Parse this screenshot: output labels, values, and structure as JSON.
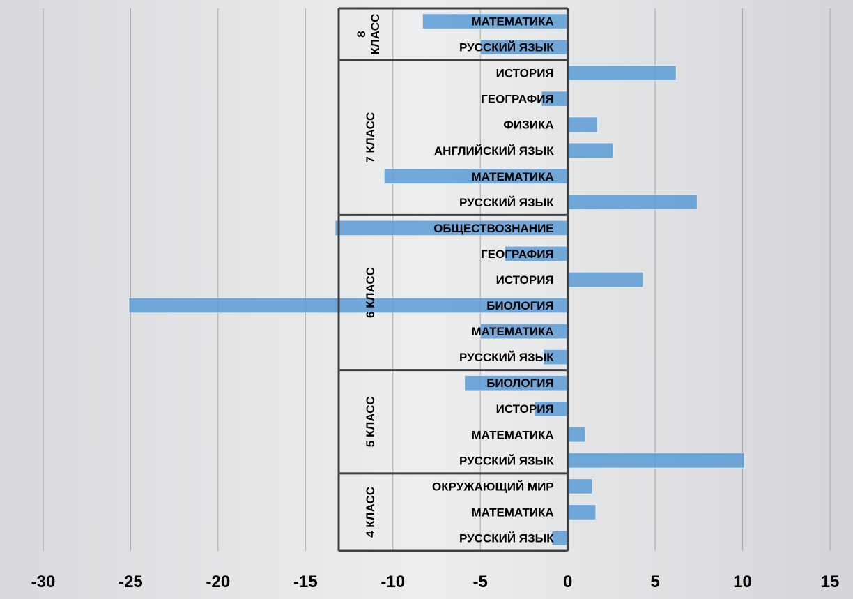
{
  "chart_data": {
    "type": "bar",
    "orientation": "horizontal",
    "title": "",
    "xlabel": "",
    "ylabel": "",
    "xlim": [
      -30,
      15
    ],
    "xticks": [
      -30,
      -25,
      -20,
      -15,
      -10,
      -5,
      0,
      5,
      10,
      15
    ],
    "grid": true,
    "legend": "none",
    "bar_color": "#5b9bd5",
    "groups": [
      {
        "name": "4 КЛАСС",
        "categories": [
          {
            "label": "РУССКИЙ ЯЗЫК",
            "value": -0.9
          },
          {
            "label": "МАТЕМАТИКА",
            "value": 1.6
          },
          {
            "label": "ОКРУЖАЮЩИЙ МИР",
            "value": 1.4
          }
        ]
      },
      {
        "name": "5 КЛАСС",
        "categories": [
          {
            "label": "РУССКИЙ ЯЗЫК",
            "value": 10.1
          },
          {
            "label": "МАТЕМАТИКА",
            "value": 1.0
          },
          {
            "label": "ИСТОРИЯ",
            "value": -1.9
          },
          {
            "label": "БИОЛОГИЯ",
            "value": -5.9
          }
        ]
      },
      {
        "name": "6 КЛАСС",
        "categories": [
          {
            "label": "РУССКИЙ ЯЗЫК",
            "value": -1.4
          },
          {
            "label": "МАТЕМАТИКА",
            "value": -5.0
          },
          {
            "label": "БИОЛОГИЯ",
            "value": -25.1
          },
          {
            "label": "ИСТОРИЯ",
            "value": 4.3
          },
          {
            "label": "ГЕОГРАФИЯ",
            "value": -3.6
          },
          {
            "label": "ОБЩЕСТВОЗНАНИЕ",
            "value": -13.3
          }
        ]
      },
      {
        "name": "7 КЛАСС",
        "categories": [
          {
            "label": "РУССКИЙ ЯЗЫК",
            "value": 7.4
          },
          {
            "label": "МАТЕМАТИКА",
            "value": -10.5
          },
          {
            "label": "АНГЛИЙСКИЙ ЯЗЫК",
            "value": 2.6
          },
          {
            "label": "ФИЗИКА",
            "value": 1.7
          },
          {
            "label": "ГЕОГРАФИЯ",
            "value": -1.5
          },
          {
            "label": "ИСТОРИЯ",
            "value": 6.2
          }
        ]
      },
      {
        "name": "8 КЛАСС",
        "categories": [
          {
            "label": "РУССКИЙ ЯЗЫК",
            "value": -5.0
          },
          {
            "label": "МАТЕМАТИКА",
            "value": -8.3
          }
        ]
      }
    ]
  }
}
